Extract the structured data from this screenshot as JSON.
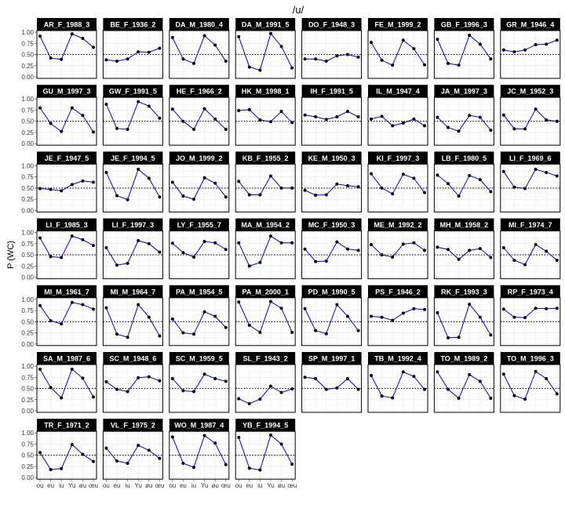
{
  "chart_data": {
    "type": "line",
    "title": "/u/",
    "ylabel": "P (WC)",
    "xlabel": "",
    "categories": [
      "ou",
      "eu",
      "iu",
      "Yu",
      "øu",
      "œu"
    ],
    "ylim": [
      0,
      1
    ],
    "yticks": [
      0.0,
      0.25,
      0.5,
      0.75,
      1.0
    ],
    "ytick_labels": [
      "0.00",
      "0.25",
      "0.50",
      "0.75",
      "1.00"
    ],
    "reference_line": 0.5,
    "grid": true,
    "line_color": "#0000cc",
    "point_color": "#000000",
    "strip_color": "#000000",
    "panels": [
      {
        "name": "AR_F_1988_3",
        "values": [
          0.91,
          0.42,
          0.39,
          0.96,
          0.86,
          0.66
        ]
      },
      {
        "name": "BE_F_1936_2",
        "values": [
          0.38,
          0.35,
          0.4,
          0.56,
          0.55,
          0.64
        ]
      },
      {
        "name": "DA_M_1980_4",
        "values": [
          0.88,
          0.4,
          0.3,
          0.92,
          0.71,
          0.35
        ]
      },
      {
        "name": "DA_M_1991_5",
        "values": [
          0.9,
          0.22,
          0.15,
          0.97,
          0.68,
          0.2
        ]
      },
      {
        "name": "DO_F_1948_3",
        "values": [
          0.4,
          0.4,
          0.35,
          0.47,
          0.5,
          0.44
        ]
      },
      {
        "name": "FE_M_1999_2",
        "values": [
          0.77,
          0.37,
          0.26,
          0.82,
          0.63,
          0.27
        ]
      },
      {
        "name": "GB_F_1996_3",
        "values": [
          0.84,
          0.3,
          0.26,
          0.93,
          0.73,
          0.4
        ]
      },
      {
        "name": "GR_M_1946_4",
        "values": [
          0.6,
          0.56,
          0.6,
          0.72,
          0.73,
          0.82
        ]
      },
      {
        "name": "GU_M_1997_3",
        "values": [
          0.8,
          0.45,
          0.27,
          0.8,
          0.63,
          0.26
        ]
      },
      {
        "name": "GW_F_1991_5",
        "values": [
          0.88,
          0.34,
          0.32,
          0.94,
          0.84,
          0.57
        ]
      },
      {
        "name": "HE_F_1966_2",
        "values": [
          0.77,
          0.5,
          0.32,
          0.78,
          0.55,
          0.32
        ]
      },
      {
        "name": "HK_M_1998_1",
        "values": [
          0.74,
          0.76,
          0.53,
          0.49,
          0.72,
          0.47
        ]
      },
      {
        "name": "IH_F_1991_5",
        "values": [
          0.64,
          0.6,
          0.54,
          0.6,
          0.72,
          0.6
        ]
      },
      {
        "name": "IL_M_1947_4",
        "values": [
          0.55,
          0.61,
          0.4,
          0.46,
          0.55,
          0.4
        ]
      },
      {
        "name": "JA_M_1997_3",
        "values": [
          0.59,
          0.36,
          0.28,
          0.63,
          0.59,
          0.3
        ]
      },
      {
        "name": "JC_M_1952_3",
        "values": [
          0.64,
          0.33,
          0.33,
          0.77,
          0.53,
          0.5
        ]
      },
      {
        "name": "JE_F_1947_5",
        "values": [
          0.49,
          0.47,
          0.44,
          0.58,
          0.66,
          0.63
        ]
      },
      {
        "name": "JE_F_1994_5",
        "values": [
          0.85,
          0.33,
          0.24,
          0.92,
          0.72,
          0.3
        ]
      },
      {
        "name": "JO_M_1999_2",
        "values": [
          0.63,
          0.32,
          0.25,
          0.73,
          0.61,
          0.3
        ]
      },
      {
        "name": "KB_F_1955_2",
        "values": [
          0.65,
          0.35,
          0.35,
          0.77,
          0.5,
          0.5
        ]
      },
      {
        "name": "KE_M_1950_3",
        "values": [
          0.45,
          0.34,
          0.35,
          0.59,
          0.55,
          0.53
        ]
      },
      {
        "name": "KI_F_1997_3",
        "values": [
          0.82,
          0.5,
          0.37,
          0.81,
          0.72,
          0.4
        ]
      },
      {
        "name": "LB_F_1980_5",
        "values": [
          0.79,
          0.6,
          0.32,
          0.78,
          0.69,
          0.42
        ]
      },
      {
        "name": "LI_F_1969_6",
        "values": [
          0.87,
          0.52,
          0.49,
          0.92,
          0.85,
          0.77
        ]
      },
      {
        "name": "LI_F_1985_3",
        "values": [
          0.88,
          0.46,
          0.44,
          0.92,
          0.84,
          0.71
        ]
      },
      {
        "name": "LI_F_1997_3",
        "values": [
          0.66,
          0.27,
          0.31,
          0.82,
          0.75,
          0.56
        ]
      },
      {
        "name": "LY_F_1955_7",
        "values": [
          0.76,
          0.55,
          0.45,
          0.8,
          0.77,
          0.62
        ]
      },
      {
        "name": "MA_M_1954_2",
        "values": [
          0.77,
          0.25,
          0.33,
          0.92,
          0.77,
          0.77
        ]
      },
      {
        "name": "MC_F_1950_3",
        "values": [
          0.63,
          0.35,
          0.36,
          0.79,
          0.63,
          0.6
        ]
      },
      {
        "name": "ME_M_1992_2",
        "values": [
          0.73,
          0.5,
          0.45,
          0.74,
          0.77,
          0.6
        ]
      },
      {
        "name": "MH_M_1958_2",
        "values": [
          0.67,
          0.62,
          0.4,
          0.6,
          0.64,
          0.44
        ]
      },
      {
        "name": "MI_F_1974_7",
        "values": [
          0.66,
          0.38,
          0.28,
          0.73,
          0.58,
          0.38
        ]
      },
      {
        "name": "MI_M_1961_7",
        "values": [
          0.86,
          0.52,
          0.45,
          0.93,
          0.88,
          0.78
        ]
      },
      {
        "name": "MI_M_1964_7",
        "values": [
          0.81,
          0.22,
          0.15,
          0.88,
          0.6,
          0.18
        ]
      },
      {
        "name": "PA_M_1954_5",
        "values": [
          0.56,
          0.25,
          0.22,
          0.72,
          0.62,
          0.37
        ]
      },
      {
        "name": "PA_M_2000_1",
        "values": [
          0.94,
          0.42,
          0.26,
          0.95,
          0.8,
          0.26
        ]
      },
      {
        "name": "PD_M_1990_5",
        "values": [
          0.79,
          0.3,
          0.23,
          0.88,
          0.62,
          0.3
        ]
      },
      {
        "name": "PS_F_1946_2",
        "values": [
          0.62,
          0.6,
          0.53,
          0.69,
          0.79,
          0.77
        ]
      },
      {
        "name": "RK_F_1993_3",
        "values": [
          0.7,
          0.14,
          0.15,
          0.89,
          0.6,
          0.2
        ]
      },
      {
        "name": "RP_F_1973_4",
        "values": [
          0.78,
          0.6,
          0.59,
          0.8,
          0.79,
          0.8
        ]
      },
      {
        "name": "SA_M_1987_6",
        "values": [
          0.93,
          0.52,
          0.29,
          0.93,
          0.73,
          0.31
        ]
      },
      {
        "name": "SC_M_1948_6",
        "values": [
          0.65,
          0.48,
          0.43,
          0.74,
          0.76,
          0.67
        ]
      },
      {
        "name": "SC_M_1959_5",
        "values": [
          0.72,
          0.45,
          0.43,
          0.82,
          0.72,
          0.66
        ]
      },
      {
        "name": "SL_F_1943_2",
        "values": [
          0.27,
          0.16,
          0.26,
          0.55,
          0.41,
          0.49
        ]
      },
      {
        "name": "SP_M_1997_1",
        "values": [
          0.75,
          0.72,
          0.48,
          0.51,
          0.72,
          0.48
        ]
      },
      {
        "name": "TB_M_1992_4",
        "values": [
          0.79,
          0.33,
          0.29,
          0.87,
          0.77,
          0.48
        ]
      },
      {
        "name": "TO_M_1989_2",
        "values": [
          0.87,
          0.48,
          0.28,
          0.81,
          0.66,
          0.28
        ]
      },
      {
        "name": "TO_M_1996_3",
        "values": [
          0.82,
          0.34,
          0.26,
          0.88,
          0.72,
          0.38
        ]
      },
      {
        "name": "TR_F_1971_2",
        "values": [
          0.56,
          0.18,
          0.2,
          0.74,
          0.52,
          0.36
        ]
      },
      {
        "name": "VL_F_1975_2",
        "values": [
          0.66,
          0.37,
          0.32,
          0.72,
          0.61,
          0.43
        ]
      },
      {
        "name": "WO_M_1987_4",
        "values": [
          0.91,
          0.32,
          0.23,
          0.94,
          0.77,
          0.29
        ]
      },
      {
        "name": "YB_F_1994_5",
        "values": [
          0.9,
          0.21,
          0.17,
          0.95,
          0.75,
          0.3
        ]
      }
    ]
  }
}
